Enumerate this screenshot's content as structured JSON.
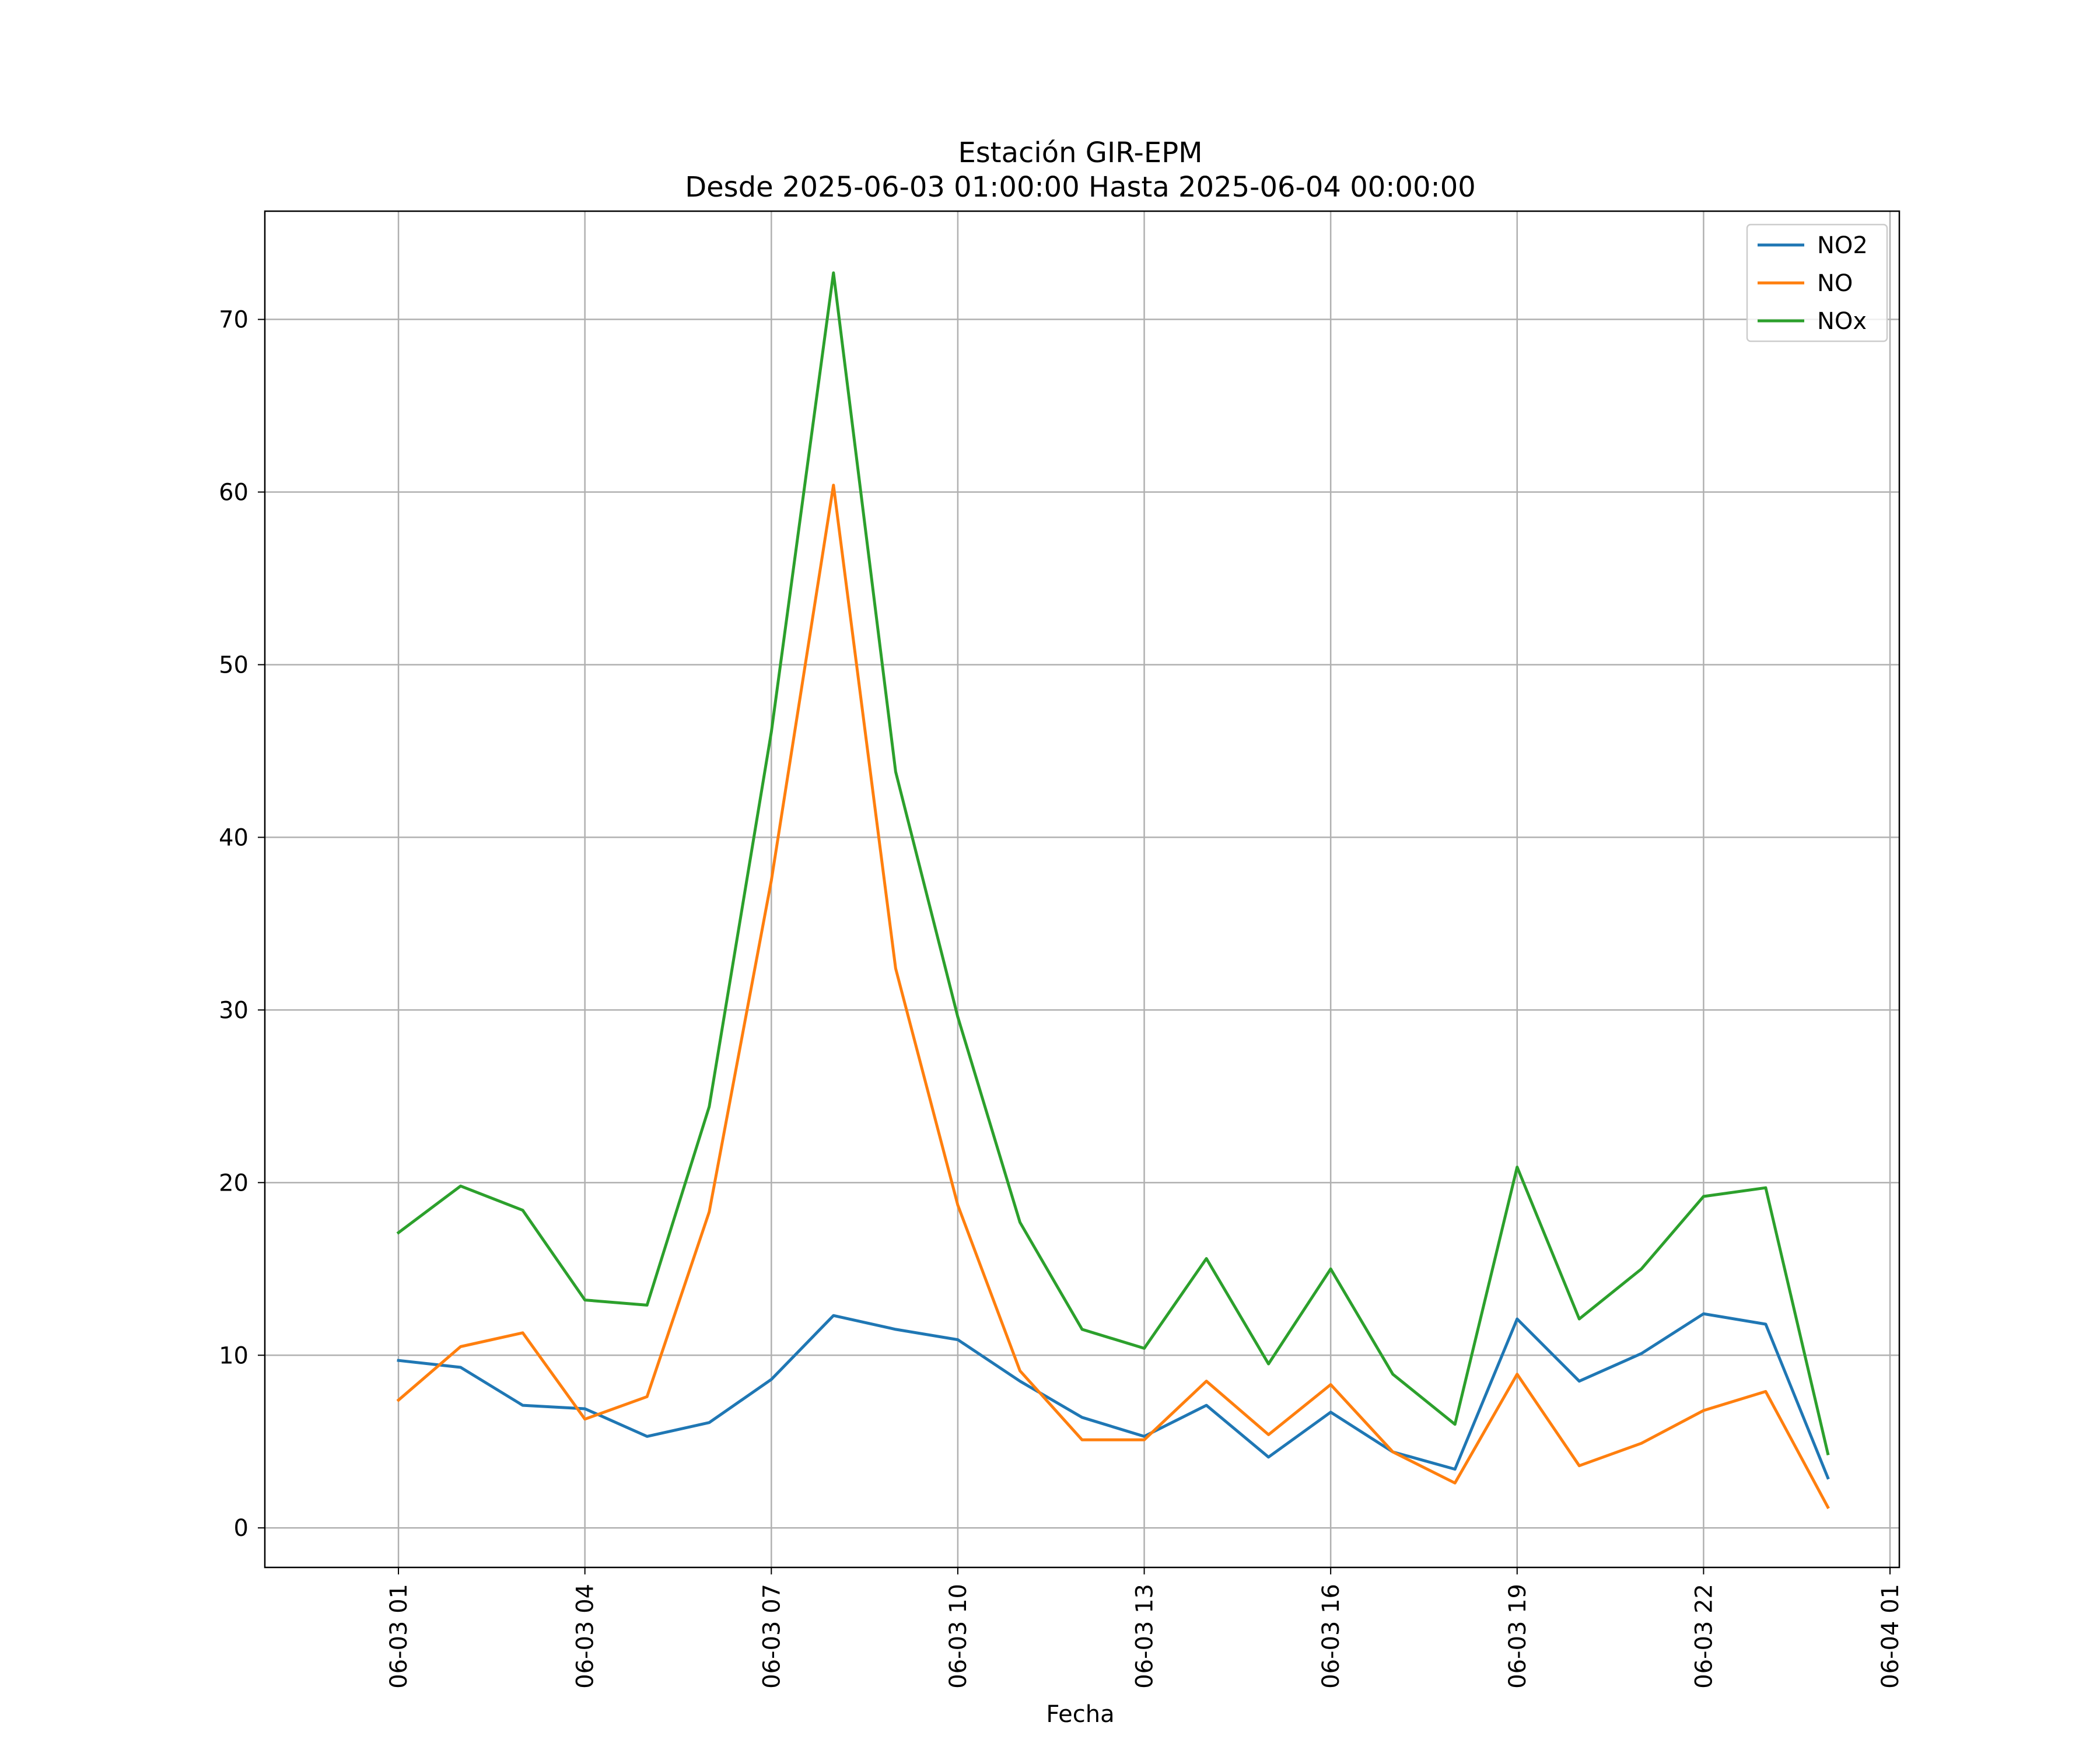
{
  "chart_data": {
    "type": "line",
    "title_line1": "Estación GIR-EPM",
    "title_line2": "Desde 2025-06-03 01:00:00 Hasta 2025-06-04 00:00:00",
    "xlabel": "Fecha",
    "ylabel": "",
    "x": [
      "2025-06-03 01:00",
      "2025-06-03 02:00",
      "2025-06-03 03:00",
      "2025-06-03 04:00",
      "2025-06-03 05:00",
      "2025-06-03 06:00",
      "2025-06-03 07:00",
      "2025-06-03 08:00",
      "2025-06-03 09:00",
      "2025-06-03 10:00",
      "2025-06-03 11:00",
      "2025-06-03 12:00",
      "2025-06-03 13:00",
      "2025-06-03 14:00",
      "2025-06-03 15:00",
      "2025-06-03 16:00",
      "2025-06-03 17:00",
      "2025-06-03 18:00",
      "2025-06-03 19:00",
      "2025-06-03 20:00",
      "2025-06-03 21:00",
      "2025-06-03 22:00",
      "2025-06-03 23:00",
      "2025-06-04 00:00"
    ],
    "series": [
      {
        "name": "NO2",
        "color": "#1f77b4",
        "values": [
          9.7,
          9.3,
          7.1,
          6.9,
          5.3,
          6.1,
          8.6,
          12.3,
          11.5,
          10.9,
          8.5,
          6.4,
          5.3,
          7.1,
          4.1,
          6.7,
          4.4,
          3.4,
          12.1,
          8.5,
          10.1,
          12.4,
          11.8,
          2.9
        ]
      },
      {
        "name": "NO",
        "color": "#ff7f0e",
        "values": [
          7.4,
          10.5,
          11.3,
          6.3,
          7.6,
          18.3,
          37.5,
          60.4,
          32.4,
          18.7,
          9.1,
          5.1,
          5.1,
          8.5,
          5.4,
          8.3,
          4.4,
          2.6,
          8.9,
          3.6,
          4.9,
          6.8,
          7.9,
          1.2
        ]
      },
      {
        "name": "NOx",
        "color": "#2ca02c",
        "values": [
          17.1,
          19.8,
          18.4,
          13.2,
          12.9,
          24.4,
          46.1,
          72.7,
          43.8,
          29.6,
          17.7,
          11.5,
          10.4,
          15.6,
          9.5,
          15.0,
          8.9,
          6.0,
          20.9,
          12.1,
          15.0,
          19.2,
          19.7,
          4.3
        ]
      }
    ],
    "yticks": [
      0,
      10,
      20,
      30,
      40,
      50,
      60,
      70
    ],
    "ylim": [
      -2.29,
      76.27
    ],
    "xticks": [
      {
        "label": "06-03 01",
        "x": "2025-06-03 01:00"
      },
      {
        "label": "06-03 04",
        "x": "2025-06-03 04:00"
      },
      {
        "label": "06-03 07",
        "x": "2025-06-03 07:00"
      },
      {
        "label": "06-03 10",
        "x": "2025-06-03 10:00"
      },
      {
        "label": "06-03 13",
        "x": "2025-06-03 13:00"
      },
      {
        "label": "06-03 16",
        "x": "2025-06-03 16:00"
      },
      {
        "label": "06-03 19",
        "x": "2025-06-03 19:00"
      },
      {
        "label": "06-03 22",
        "x": "2025-06-03 22:00"
      },
      {
        "label": "06-04 01",
        "x": "2025-06-04 01:00"
      }
    ],
    "xlim": [
      "2025-06-02 22:51",
      "2025-06-04 01:09"
    ],
    "grid": true,
    "legend_position": "top-right"
  }
}
